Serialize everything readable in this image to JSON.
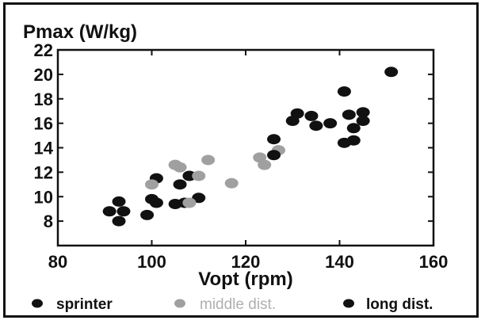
{
  "chart_data": {
    "type": "scatter",
    "title": "Pmax (W/kg)",
    "xlabel": "Vopt (rpm)",
    "ylabel": "",
    "xlim": [
      80,
      160
    ],
    "ylim": [
      6,
      22
    ],
    "x_ticks": [
      80,
      100,
      120,
      140,
      160
    ],
    "y_ticks": [
      8,
      10,
      12,
      14,
      16,
      18,
      20,
      22
    ],
    "grid": false,
    "legend_position": "bottom",
    "series": [
      {
        "name": "sprinter",
        "color": "#111111",
        "points": [
          [
            91,
            8.8
          ],
          [
            93,
            9.6
          ],
          [
            93,
            8.0
          ],
          [
            94,
            8.8
          ],
          [
            99,
            8.5
          ],
          [
            100,
            9.8
          ],
          [
            101,
            9.5
          ],
          [
            101,
            11.5
          ],
          [
            105,
            9.4
          ],
          [
            106,
            11.0
          ],
          [
            107,
            9.5
          ],
          [
            108,
            11.7
          ],
          [
            110,
            9.9
          ]
        ]
      },
      {
        "name": "middle dist.",
        "color": "#a0a0a0",
        "points": [
          [
            100,
            11.0
          ],
          [
            105,
            12.6
          ],
          [
            106,
            12.4
          ],
          [
            108,
            9.5
          ],
          [
            110,
            11.7
          ],
          [
            112,
            13.0
          ],
          [
            117,
            11.1
          ],
          [
            123,
            13.2
          ],
          [
            124,
            12.6
          ],
          [
            127,
            13.8
          ]
        ]
      },
      {
        "name": "long dist.",
        "color": "#111111",
        "points": [
          [
            126,
            14.7
          ],
          [
            126,
            13.4
          ],
          [
            130,
            16.2
          ],
          [
            131,
            16.8
          ],
          [
            134,
            16.6
          ],
          [
            135,
            15.8
          ],
          [
            138,
            16.0
          ],
          [
            141,
            18.6
          ],
          [
            141,
            14.4
          ],
          [
            142,
            16.7
          ],
          [
            143,
            14.6
          ],
          [
            143,
            15.6
          ],
          [
            145,
            16.9
          ],
          [
            145,
            16.2
          ],
          [
            151,
            20.2
          ]
        ]
      }
    ]
  }
}
